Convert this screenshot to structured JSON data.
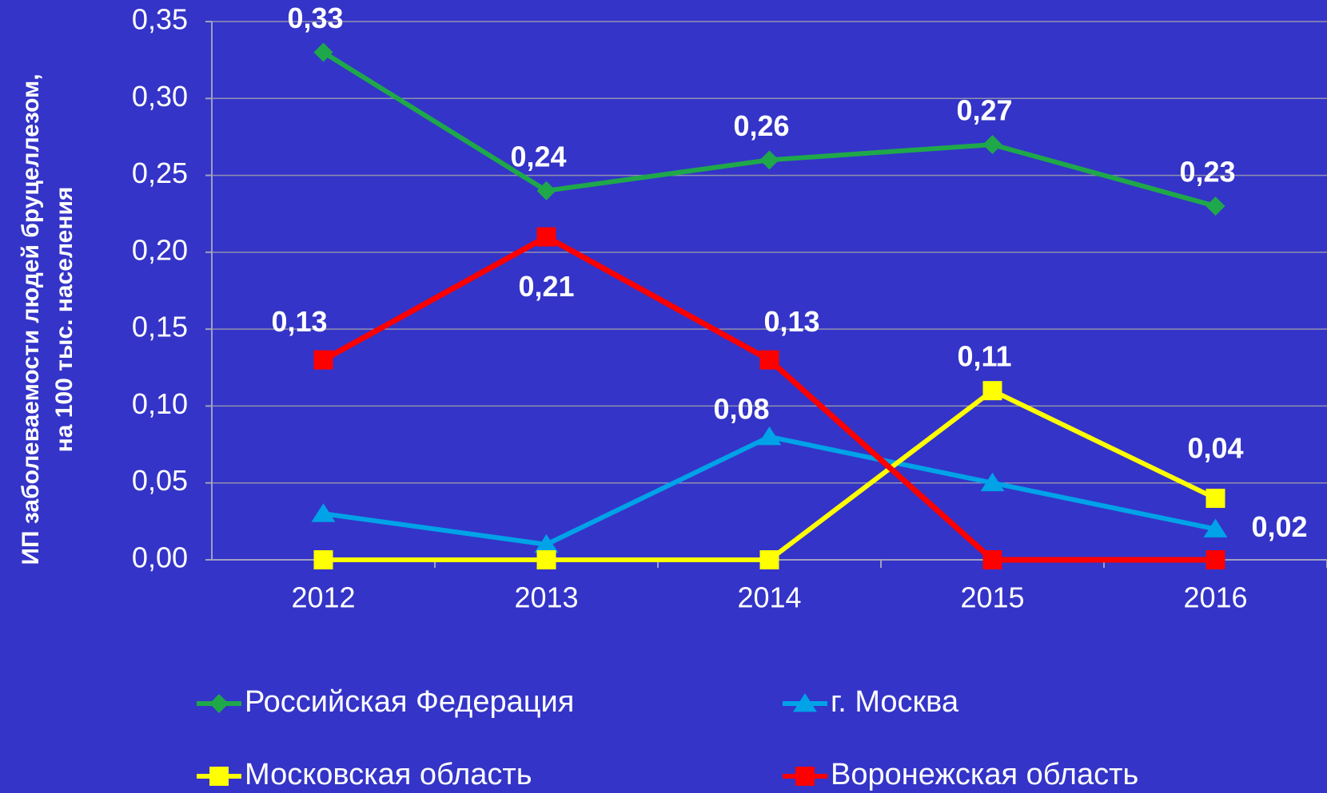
{
  "chart_data": {
    "type": "line",
    "ylabel": [
      "ИП заболеваемости людей бруцеллезом,",
      "на 100 тыс. населения"
    ],
    "categories": [
      "2012",
      "2013",
      "2014",
      "2015",
      "2016"
    ],
    "ylim": [
      0,
      0.35
    ],
    "yticks": [
      {
        "value": 0,
        "label": "0,00"
      },
      {
        "value": 0.05,
        "label": "0,05"
      },
      {
        "value": 0.1,
        "label": "0,10"
      },
      {
        "value": 0.15,
        "label": "0,15"
      },
      {
        "value": 0.2,
        "label": "0,20"
      },
      {
        "value": 0.25,
        "label": "0,25"
      },
      {
        "value": 0.3,
        "label": "0,30"
      },
      {
        "value": 0.35,
        "label": "0,35"
      }
    ],
    "grid": true,
    "series": [
      {
        "name": "Российская Федерация",
        "color": "#1fa84a",
        "marker": "diamond",
        "values": [
          0.33,
          0.24,
          0.26,
          0.27,
          0.23
        ],
        "value_labels": [
          "0,33",
          "0,24",
          "0,26",
          "0,27",
          "0,23"
        ]
      },
      {
        "name": "г. Москва",
        "color": "#00a2e8",
        "marker": "triangle",
        "values": [
          0.03,
          0.01,
          0.08,
          0.05,
          0.02
        ],
        "value_labels": [
          null,
          null,
          "0,08",
          null,
          "0,02"
        ]
      },
      {
        "name": "Московская область",
        "color": "#ffff00",
        "marker": "square",
        "values": [
          0,
          0,
          0,
          0.11,
          0.04
        ],
        "value_labels": [
          null,
          null,
          null,
          "0,11",
          "0,04"
        ]
      },
      {
        "name": "Воронежская область",
        "color": "#ff0000",
        "marker": "square",
        "values": [
          0.13,
          0.21,
          0.13,
          0,
          0
        ],
        "value_labels": [
          "0,13",
          "0,21",
          "0,13",
          null,
          null
        ]
      }
    ]
  }
}
